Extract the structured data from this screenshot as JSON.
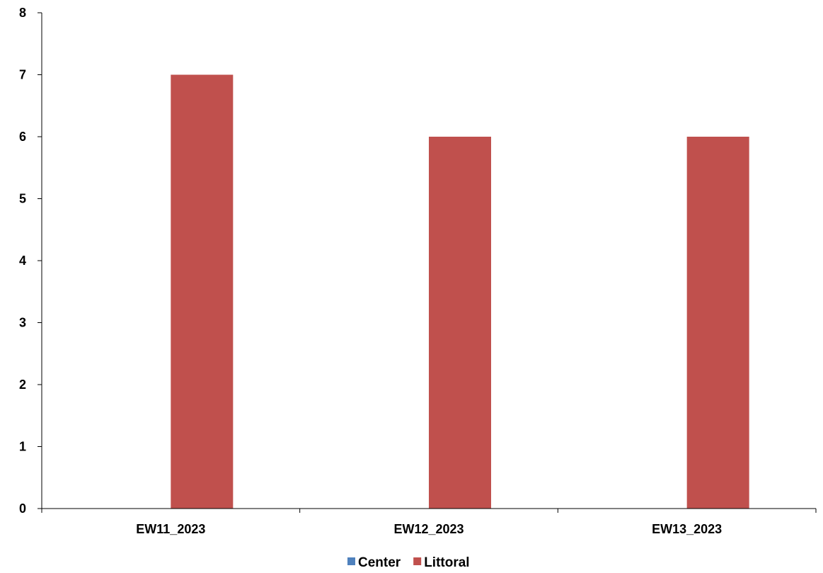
{
  "chart_data": {
    "type": "bar",
    "title": "",
    "xlabel": "",
    "ylabel": "",
    "categories": [
      "EW11_2023",
      "EW12_2023",
      "EW13_2023"
    ],
    "series": [
      {
        "name": "Center",
        "values": [
          0,
          0,
          0
        ],
        "color": "#4F81BD"
      },
      {
        "name": "Littoral",
        "values": [
          7,
          6,
          6
        ],
        "color": "#C0504D"
      }
    ],
    "ylim": [
      0,
      8
    ],
    "yticks": [
      0,
      1,
      2,
      3,
      4,
      5,
      6,
      7,
      8
    ],
    "grid": false,
    "legend_position": "bottom"
  }
}
